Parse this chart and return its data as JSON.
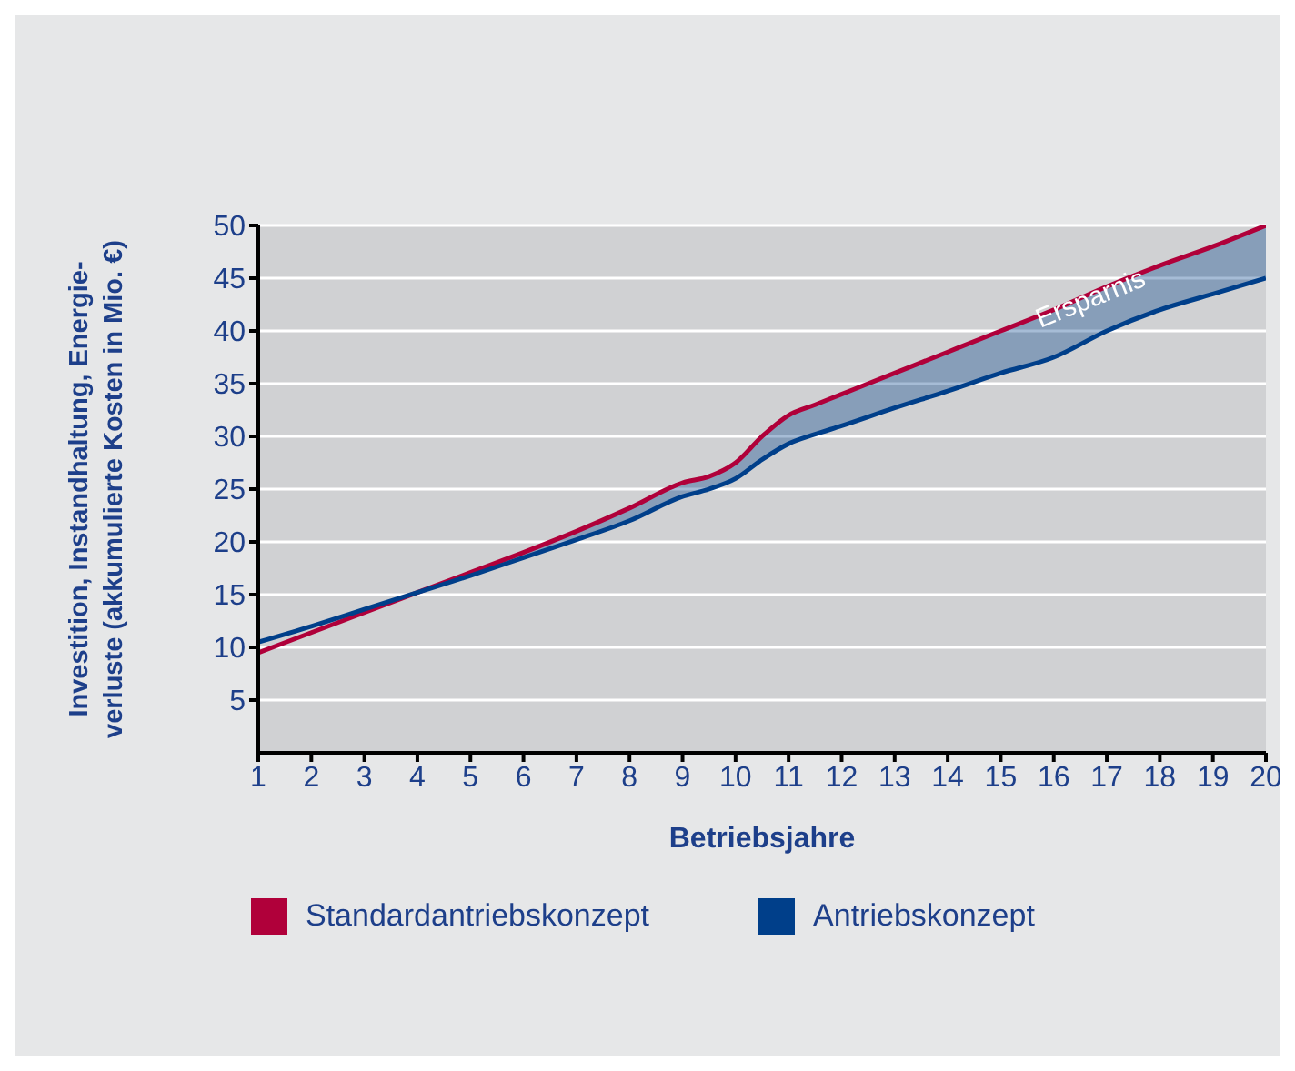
{
  "chart_data": {
    "type": "line",
    "xlabel": "Betriebsjahre",
    "ylabel": "Investition, Instandhaltung, Energie-\nverluste (akkumulierte Kosten in Mio. €)",
    "x": [
      1,
      2,
      3,
      4,
      5,
      6,
      7,
      8,
      9,
      9.5,
      10,
      10.5,
      11,
      11.5,
      12,
      13,
      14,
      15,
      16,
      17,
      18,
      19,
      20
    ],
    "series": [
      {
        "name": "Standardantriebskonzept",
        "color": "#b0003a",
        "values": [
          9.5,
          11.4,
          13.3,
          15.2,
          17.1,
          19,
          21,
          23.2,
          25.6,
          26.2,
          27.5,
          30,
          32,
          33,
          34,
          36,
          38,
          40,
          42,
          44.2,
          46.2,
          48,
          50
        ]
      },
      {
        "name": "Antriebskonzept",
        "color": "#003f8a",
        "values": [
          10.5,
          12,
          13.6,
          15.2,
          16.8,
          18.5,
          20.2,
          22,
          24.3,
          25,
          26,
          27.8,
          29.3,
          30.2,
          31,
          32.7,
          34.3,
          36,
          37.5,
          40,
          42,
          43.5,
          45
        ],
        "lower": [
          10.5,
          12,
          13.6,
          15.2,
          16.8,
          18.5,
          20.2,
          22,
          24.3,
          25,
          26,
          27.8,
          29.3,
          30.2,
          31,
          32.7,
          34.3,
          36,
          37.5,
          40,
          42,
          43.5,
          45
        ],
        "upper": [
          10.5,
          12,
          13.6,
          15.2,
          17.1,
          19,
          21,
          23.2,
          25.6,
          26.2,
          27.5,
          30,
          32,
          33,
          34,
          36,
          38,
          40,
          42,
          44.2,
          46.2,
          48,
          50
        ]
      }
    ],
    "annotations": [
      "Ersparnis"
    ],
    "xlim": [
      1,
      20
    ],
    "xticks": [
      1,
      2,
      3,
      4,
      5,
      6,
      7,
      8,
      9,
      10,
      11,
      12,
      13,
      14,
      15,
      16,
      17,
      18,
      19,
      20
    ],
    "ylim": [
      0,
      50
    ],
    "yticks": [
      5,
      10,
      15,
      20,
      25,
      30,
      35,
      40,
      45,
      50
    ],
    "grid": "y",
    "legend": "bottom",
    "line_style": "solid",
    "marker": "none"
  }
}
